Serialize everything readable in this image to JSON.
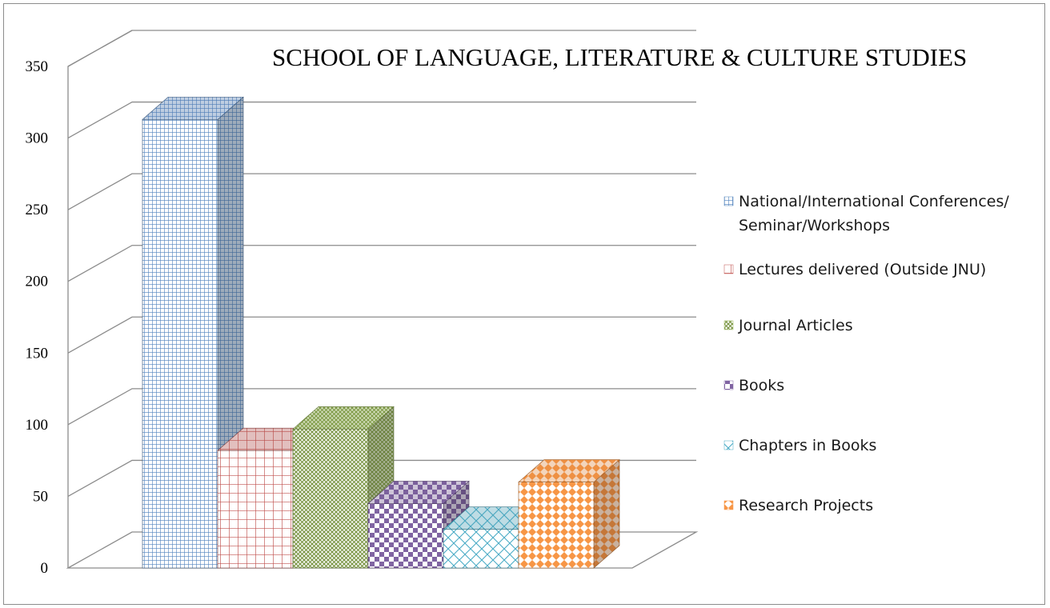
{
  "chart_data": {
    "type": "bar",
    "title": "SCHOOL OF LANGUAGE, LITERATURE & CULTURE STUDIES",
    "xlabel": "",
    "ylabel": "",
    "ylim": [
      0,
      350
    ],
    "yticks": [
      "0",
      "50",
      "100",
      "150",
      "200",
      "250",
      "300",
      "350"
    ],
    "grid": true,
    "three_d": true,
    "legend_position": "right",
    "series": [
      {
        "name": "National/International Conferences/ Seminar/Workshops",
        "value": 323,
        "color": "#4f81bd",
        "pattern": "grid-fine"
      },
      {
        "name": "Lectures delivered (Outside JNU)",
        "value": 92,
        "color": "#c0504d",
        "pattern": "grid"
      },
      {
        "name": "Journal Articles",
        "value": 107,
        "color": "#9bbb59",
        "pattern": "crosshatch"
      },
      {
        "name": "Books",
        "value": 55,
        "color": "#8064a2",
        "pattern": "checker"
      },
      {
        "name": "Chapters in Books",
        "value": 37,
        "color": "#4bacc6",
        "pattern": "diamond"
      },
      {
        "name": "Research Projects",
        "value": 70,
        "color": "#f79646",
        "pattern": "dots"
      }
    ]
  }
}
